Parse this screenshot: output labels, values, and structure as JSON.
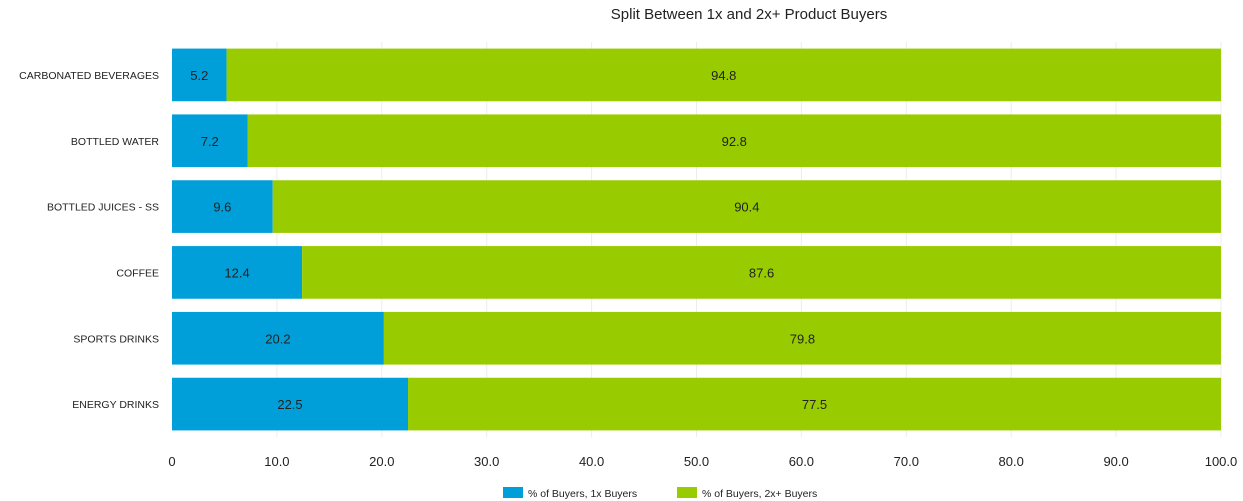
{
  "chart_data": {
    "type": "bar",
    "orientation": "horizontal",
    "stacked": true,
    "title": "Split Between 1x and 2x+ Product Buyers",
    "xlabel": "",
    "ylabel": "",
    "categories": [
      "CARBONATED BEVERAGES",
      "BOTTLED WATER",
      "BOTTLED JUICES - SS",
      "COFFEE",
      "SPORTS DRINKS",
      "ENERGY DRINKS"
    ],
    "series": [
      {
        "name": "% of Buyers, 1x Buyers",
        "color": "#009fd9",
        "values": [
          5.2,
          7.2,
          9.6,
          12.4,
          20.2,
          22.5
        ],
        "labels": [
          "5.2",
          "7.2",
          "9.6",
          "12.4",
          "20.2",
          "22.5"
        ]
      },
      {
        "name": "% of Buyers, 2x+ Buyers",
        "color": "#99cc00",
        "values": [
          94.8,
          92.8,
          90.4,
          87.6,
          79.8,
          77.5
        ],
        "labels": [
          "94.8",
          "92.8",
          "90.4",
          "87.6",
          "79.8",
          "77.5"
        ]
      }
    ],
    "xlim": [
      0,
      100
    ],
    "xticks": [
      0,
      10,
      20,
      30,
      40,
      50,
      60,
      70,
      80,
      90,
      100
    ],
    "xtick_labels": [
      "0",
      "10.0",
      "20.0",
      "30.0",
      "40.0",
      "50.0",
      "60.0",
      "70.0",
      "80.0",
      "90.0",
      "100.0"
    ],
    "grid": true,
    "legend_position": "bottom-center"
  }
}
